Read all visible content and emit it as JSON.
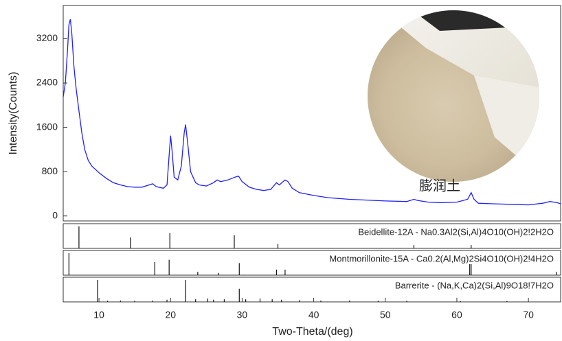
{
  "chart_data": {
    "type": "xrd",
    "xlabel": "Two-Theta/(deg)",
    "ylabel": "Intensity(Counts)",
    "caption": "膨润土",
    "color": "#1f1fff",
    "xlim": [
      5,
      74.5
    ],
    "ylim": [
      -90,
      3800
    ],
    "xticks": [
      10,
      20,
      30,
      40,
      50,
      60,
      70
    ],
    "yticks": [
      0,
      800,
      1600,
      2400,
      3200
    ],
    "x": [
      5.0,
      5.3,
      5.6,
      5.8,
      6.0,
      6.2,
      6.5,
      6.8,
      7.2,
      7.6,
      8.0,
      8.5,
      9.0,
      10.0,
      11.0,
      12.0,
      13.0,
      14.0,
      15.0,
      16.0,
      17.0,
      17.5,
      18.0,
      19.0,
      19.5,
      19.8,
      20.0,
      20.2,
      20.5,
      21.0,
      21.5,
      21.9,
      22.1,
      22.4,
      22.8,
      23.5,
      24.0,
      25.0,
      26.0,
      26.5,
      27.0,
      28.0,
      29.0,
      29.5,
      30.0,
      31.0,
      32.0,
      33.0,
      34.0,
      34.8,
      35.2,
      36.0,
      36.4,
      37.0,
      38.0,
      40.0,
      42.0,
      45.0,
      50.0,
      53.0,
      54.0,
      54.5,
      56.0,
      58.0,
      60.0,
      61.5,
      62.0,
      62.4,
      63.0,
      65.0,
      70.0,
      72.0,
      73.0,
      74.0,
      74.5
    ],
    "values": [
      2150,
      2400,
      3000,
      3450,
      3550,
      3300,
      2700,
      2300,
      1900,
      1500,
      1200,
      1000,
      900,
      780,
      680,
      600,
      560,
      530,
      520,
      520,
      560,
      580,
      530,
      500,
      560,
      1100,
      1450,
      1200,
      700,
      650,
      900,
      1500,
      1650,
      1300,
      800,
      600,
      560,
      540,
      600,
      650,
      620,
      650,
      700,
      720,
      620,
      520,
      480,
      460,
      480,
      600,
      560,
      650,
      620,
      500,
      420,
      370,
      330,
      300,
      270,
      260,
      300,
      280,
      250,
      240,
      250,
      300,
      420,
      300,
      230,
      220,
      200,
      230,
      260,
      240,
      220
    ],
    "references": [
      {
        "label": "Beidellite-12A - Na0.3Al2(Si,Al)4O10(OH)2!2H2O",
        "peaks": [
          7.2,
          14.4,
          19.9,
          28.9,
          35.0,
          54.0,
          62.0
        ],
        "intensities": [
          100,
          50,
          70,
          60,
          20,
          15,
          15
        ]
      },
      {
        "label": "Montmorillonite-15A - Ca0.2(Al,Mg)2Si4O10(OH)2!4H2O",
        "peaks": [
          5.8,
          17.8,
          19.8,
          23.8,
          26.7,
          29.6,
          34.8,
          36.0,
          61.8,
          62.0,
          73.9
        ],
        "intensities": [
          100,
          60,
          70,
          15,
          10,
          55,
          25,
          25,
          50,
          50,
          15
        ]
      },
      {
        "label": "Barrerite - (Na,K,Ca)2(Si,Al)9O18!7H2O",
        "peaks": [
          9.8,
          11.2,
          13.0,
          15.0,
          17.5,
          19.5,
          22.1,
          23.5,
          25.2,
          26.0,
          27.5,
          29.6,
          30.5,
          32.5,
          34.2,
          35.5,
          38.0,
          41.0,
          45.0,
          49.0,
          53.0,
          60.5,
          67.0
        ],
        "intensities": [
          100,
          5,
          6,
          5,
          6,
          10,
          100,
          12,
          15,
          10,
          12,
          60,
          12,
          15,
          12,
          10,
          8,
          6,
          6,
          5,
          5,
          4,
          4
        ]
      }
    ]
  }
}
